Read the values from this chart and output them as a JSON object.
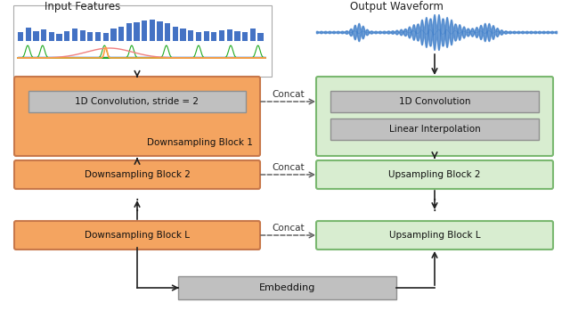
{
  "title_left": "Input Features",
  "title_right": "Output Waveform",
  "ds_block1_inner": "1D Convolution, stride = 2",
  "ds_block1_label": "Downsampling Block 1",
  "ds_block2_label": "Downsampling Block 2",
  "ds_blockL_label": "Downsampling Block L",
  "us_block1_inner1": "1D Convolution",
  "us_block1_inner2": "Linear Interpolation",
  "us_block2_label": "Upsampling Block 2",
  "us_blockL_label": "Upsampling Block L",
  "embedding_label": "Embedding",
  "concat_label": "Concat",
  "ds_fill": "#F4A460",
  "ds_edge": "#C8784A",
  "us_fill": "#D8EDD0",
  "us_edge": "#7AB870",
  "inner_fill": "#C0C0C0",
  "inner_edge": "#909090",
  "embed_fill": "#C0C0C0",
  "embed_edge": "#909090",
  "bg": "#FFFFFF",
  "arrow_c": "#222222",
  "dash_c": "#555555",
  "bar_c": "#4472C4",
  "wave_c": "#3A7BC8"
}
